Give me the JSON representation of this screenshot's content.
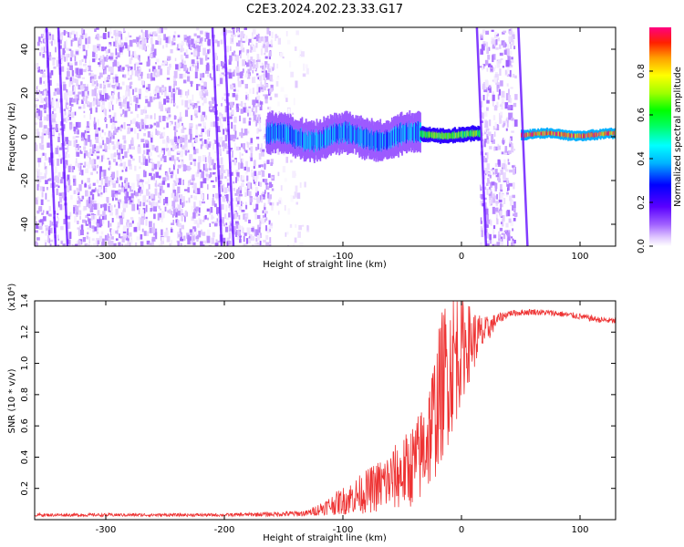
{
  "title": "C2E3.2024.202.23.33.G17",
  "chart_data": [
    {
      "type": "heatmap",
      "title": "C2E3.2024.202.23.33.G17",
      "xlabel": "Height of straight line (km)",
      "ylabel": "Frequency (Hz)",
      "xlim": [
        -360,
        130
      ],
      "ylim": [
        -50,
        50
      ],
      "x_ticks": [
        -300,
        -200,
        -100,
        0,
        100
      ],
      "y_ticks": [
        -40,
        -20,
        0,
        20,
        40
      ],
      "colorbar": {
        "label": "Normalized spectral amplitude",
        "range": [
          0,
          1
        ],
        "ticks": [
          "0.0",
          "0.2",
          "0.4",
          "0.6",
          "0.8"
        ],
        "colormap": [
          "#ffffff",
          "#e0c8ff",
          "#a060ff",
          "#5a00ff",
          "#0000ff",
          "#00b4ff",
          "#00ffff",
          "#00ff60",
          "#00ff00",
          "#a0ff00",
          "#ffff00",
          "#ffa000",
          "#ff2000",
          "#ff0080"
        ]
      },
      "regions": [
        {
          "x_range": [
            -360,
            -160
          ],
          "pattern": "broadband speckle",
          "amplitude": 0.1
        },
        {
          "x_range": [
            -160,
            -130
          ],
          "pattern": "sparse speckle",
          "amplitude": 0.05
        },
        {
          "x_range": [
            -165,
            -35
          ],
          "center_hz": 0,
          "halfwidth_hz": 8,
          "amplitude": 0.35
        },
        {
          "x_range": [
            -35,
            15
          ],
          "center_hz": 1,
          "halfwidth_hz": 3,
          "amplitude": 0.6
        },
        {
          "x_range": [
            15,
            45
          ],
          "pattern": "broadband speckle",
          "amplitude": 0.1
        },
        {
          "x_range": [
            50,
            130
          ],
          "center_hz": 1,
          "halfwidth_hz": 2,
          "amplitude": 0.85
        }
      ],
      "vertical_streaks": [
        -350,
        -340,
        -210,
        -200,
        13,
        48
      ]
    },
    {
      "type": "line",
      "xlabel": "Height of straight line (km)",
      "ylabel": "SNR (10 * v/v)",
      "y_multiplier": "(x10⁴)",
      "xlim": [
        -360,
        130
      ],
      "ylim": [
        0,
        1.4
      ],
      "x_ticks": [
        -300,
        -200,
        -100,
        0,
        100
      ],
      "y_ticks": [
        0.2,
        0.4,
        0.6,
        0.8,
        1.0,
        1.2,
        1.4
      ],
      "color": "#ee3333",
      "series": [
        {
          "x": [
            -360,
            -300,
            -250,
            -200,
            -160,
            -130,
            -115,
            -100,
            -80,
            -60,
            -45,
            -35,
            -25,
            -15,
            -5,
            0,
            10,
            20,
            30,
            40,
            60,
            80,
            100,
            115,
            130
          ],
          "y": [
            0.03,
            0.03,
            0.03,
            0.03,
            0.035,
            0.04,
            0.08,
            0.12,
            0.18,
            0.25,
            0.32,
            0.4,
            0.6,
            0.9,
            1.05,
            1.1,
            1.15,
            1.2,
            1.28,
            1.32,
            1.33,
            1.32,
            1.3,
            1.28,
            1.27
          ],
          "noise": [
            0.01,
            0.01,
            0.01,
            0.01,
            0.015,
            0.02,
            0.05,
            0.09,
            0.14,
            0.2,
            0.25,
            0.3,
            0.4,
            0.5,
            0.45,
            0.35,
            0.2,
            0.1,
            0.04,
            0.02,
            0.02,
            0.02,
            0.02,
            0.02,
            0.02
          ]
        }
      ]
    }
  ]
}
